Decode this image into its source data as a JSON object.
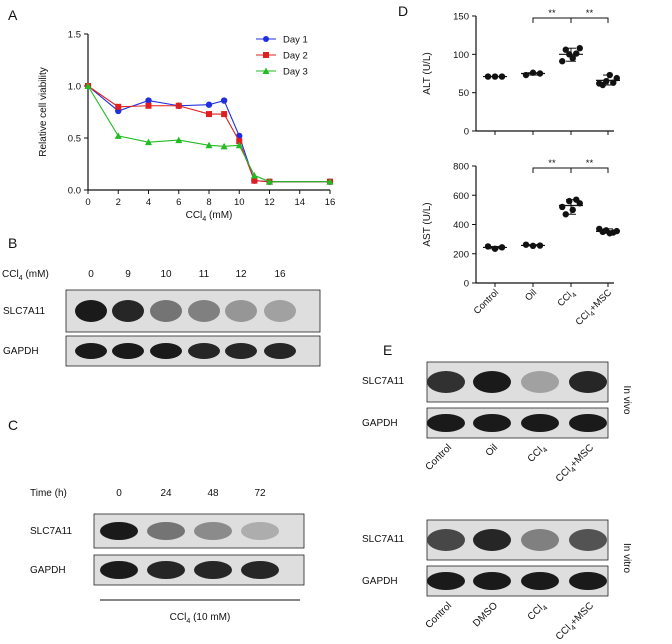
{
  "chart_data": [
    {
      "panel": "A",
      "type": "line",
      "xlabel": "CCl4 (mM)",
      "ylabel": "Relative cell viability",
      "xlim": [
        0,
        16
      ],
      "ylim": [
        0,
        1.5
      ],
      "xticks": [
        "0",
        "2",
        "4",
        "6",
        "8",
        "10",
        "12",
        "14",
        "16"
      ],
      "yticks": [
        "0.0",
        "0.5",
        "1.0",
        "1.5"
      ],
      "legend_position": "top-right",
      "series": [
        {
          "name": "Day 1",
          "color": "#1f2fe0",
          "marker": "circle",
          "x": [
            0,
            2,
            4,
            6,
            8,
            9,
            10,
            11,
            12,
            16
          ],
          "y": [
            1.0,
            0.76,
            0.86,
            0.81,
            0.82,
            0.86,
            0.52,
            0.09,
            0.08,
            0.08
          ]
        },
        {
          "name": "Day 2",
          "color": "#e01f1f",
          "marker": "square",
          "x": [
            0,
            2,
            4,
            6,
            8,
            9,
            10,
            11,
            12,
            16
          ],
          "y": [
            1.0,
            0.8,
            0.81,
            0.81,
            0.73,
            0.73,
            0.47,
            0.09,
            0.08,
            0.08
          ]
        },
        {
          "name": "Day 3",
          "color": "#22bb22",
          "marker": "triangle",
          "x": [
            0,
            2,
            4,
            6,
            8,
            9,
            10,
            11,
            12,
            16
          ],
          "y": [
            1.0,
            0.52,
            0.46,
            0.48,
            0.43,
            0.42,
            0.43,
            0.14,
            0.08,
            0.08
          ]
        }
      ]
    },
    {
      "panel": "D",
      "type": "scatter",
      "ylabel": "ALT (U/L)",
      "ylim": [
        0,
        150
      ],
      "yticks": [
        "0",
        "50",
        "100",
        "150"
      ],
      "categories": [
        "Control",
        "Oil",
        "CCl4",
        "CCl4+MSC"
      ],
      "points": [
        [
          71,
          71,
          71
        ],
        [
          73,
          76,
          75
        ],
        [
          91,
          100,
          101,
          106,
          95,
          108
        ],
        [
          62,
          65,
          63,
          60,
          73,
          69
        ]
      ],
      "mean": [
        71,
        75,
        100,
        66
      ],
      "sig": [
        {
          "from": 1,
          "to": 2,
          "label": "**"
        },
        {
          "from": 2,
          "to": 3,
          "label": "**"
        }
      ]
    },
    {
      "panel": "D",
      "type": "scatter",
      "ylabel": "AST (U/L)",
      "ylim": [
        0,
        800
      ],
      "yticks": [
        "0",
        "200",
        "400",
        "600",
        "800"
      ],
      "categories": [
        "Control",
        "Oil",
        "CCl4",
        "CCl4+MSC"
      ],
      "points": [
        [
          250,
          234,
          244
        ],
        [
          262,
          254,
          256
        ],
        [
          520,
          560,
          570,
          470,
          500,
          545
        ],
        [
          370,
          360,
          345,
          350,
          340,
          355
        ]
      ],
      "mean": [
        243,
        257,
        530,
        353
      ],
      "sig": [
        {
          "from": 1,
          "to": 2,
          "label": "**"
        },
        {
          "from": 2,
          "to": 3,
          "label": "**"
        }
      ]
    }
  ],
  "panel_labels": {
    "A": "A",
    "B": "B",
    "C": "C",
    "D": "D",
    "E": "E"
  },
  "blot_B": {
    "header": "CCl4 (mM)",
    "lanes": [
      "0",
      "9",
      "10",
      "11",
      "12",
      "16"
    ],
    "rows": [
      "SLC7A11",
      "GAPDH"
    ],
    "intensity": {
      "SLC7A11": [
        0.95,
        0.9,
        0.55,
        0.5,
        0.4,
        0.35
      ],
      "GAPDH": [
        0.95,
        0.95,
        0.95,
        0.9,
        0.9,
        0.9
      ]
    }
  },
  "blot_C": {
    "header": "Time (h)",
    "lanes": [
      "0",
      "24",
      "48",
      "72"
    ],
    "rows": [
      "SLC7A11",
      "GAPDH"
    ],
    "intensity": {
      "SLC7A11": [
        0.95,
        0.55,
        0.45,
        0.3
      ],
      "GAPDH": [
        0.95,
        0.9,
        0.9,
        0.9
      ]
    },
    "footer": "CCl4 (10 mM)"
  },
  "blot_E": {
    "in_vivo_label": "In vivo",
    "in_vitro_label": "In vitro",
    "rows": [
      "SLC7A11",
      "GAPDH"
    ],
    "in_vivo_lanes": [
      "Control",
      "Oil",
      "CCl4",
      "CCl4+MSC"
    ],
    "in_vitro_lanes": [
      "Control",
      "DMSO",
      "CCl4",
      "CCl4+MSC"
    ],
    "in_vivo_intensity": {
      "SLC7A11": [
        0.85,
        0.95,
        0.35,
        0.9
      ],
      "GAPDH": [
        0.95,
        0.95,
        0.95,
        0.95
      ]
    },
    "in_vitro_intensity": {
      "SLC7A11": [
        0.75,
        0.9,
        0.5,
        0.7
      ],
      "GAPDH": [
        0.95,
        0.95,
        0.95,
        0.95
      ]
    }
  }
}
